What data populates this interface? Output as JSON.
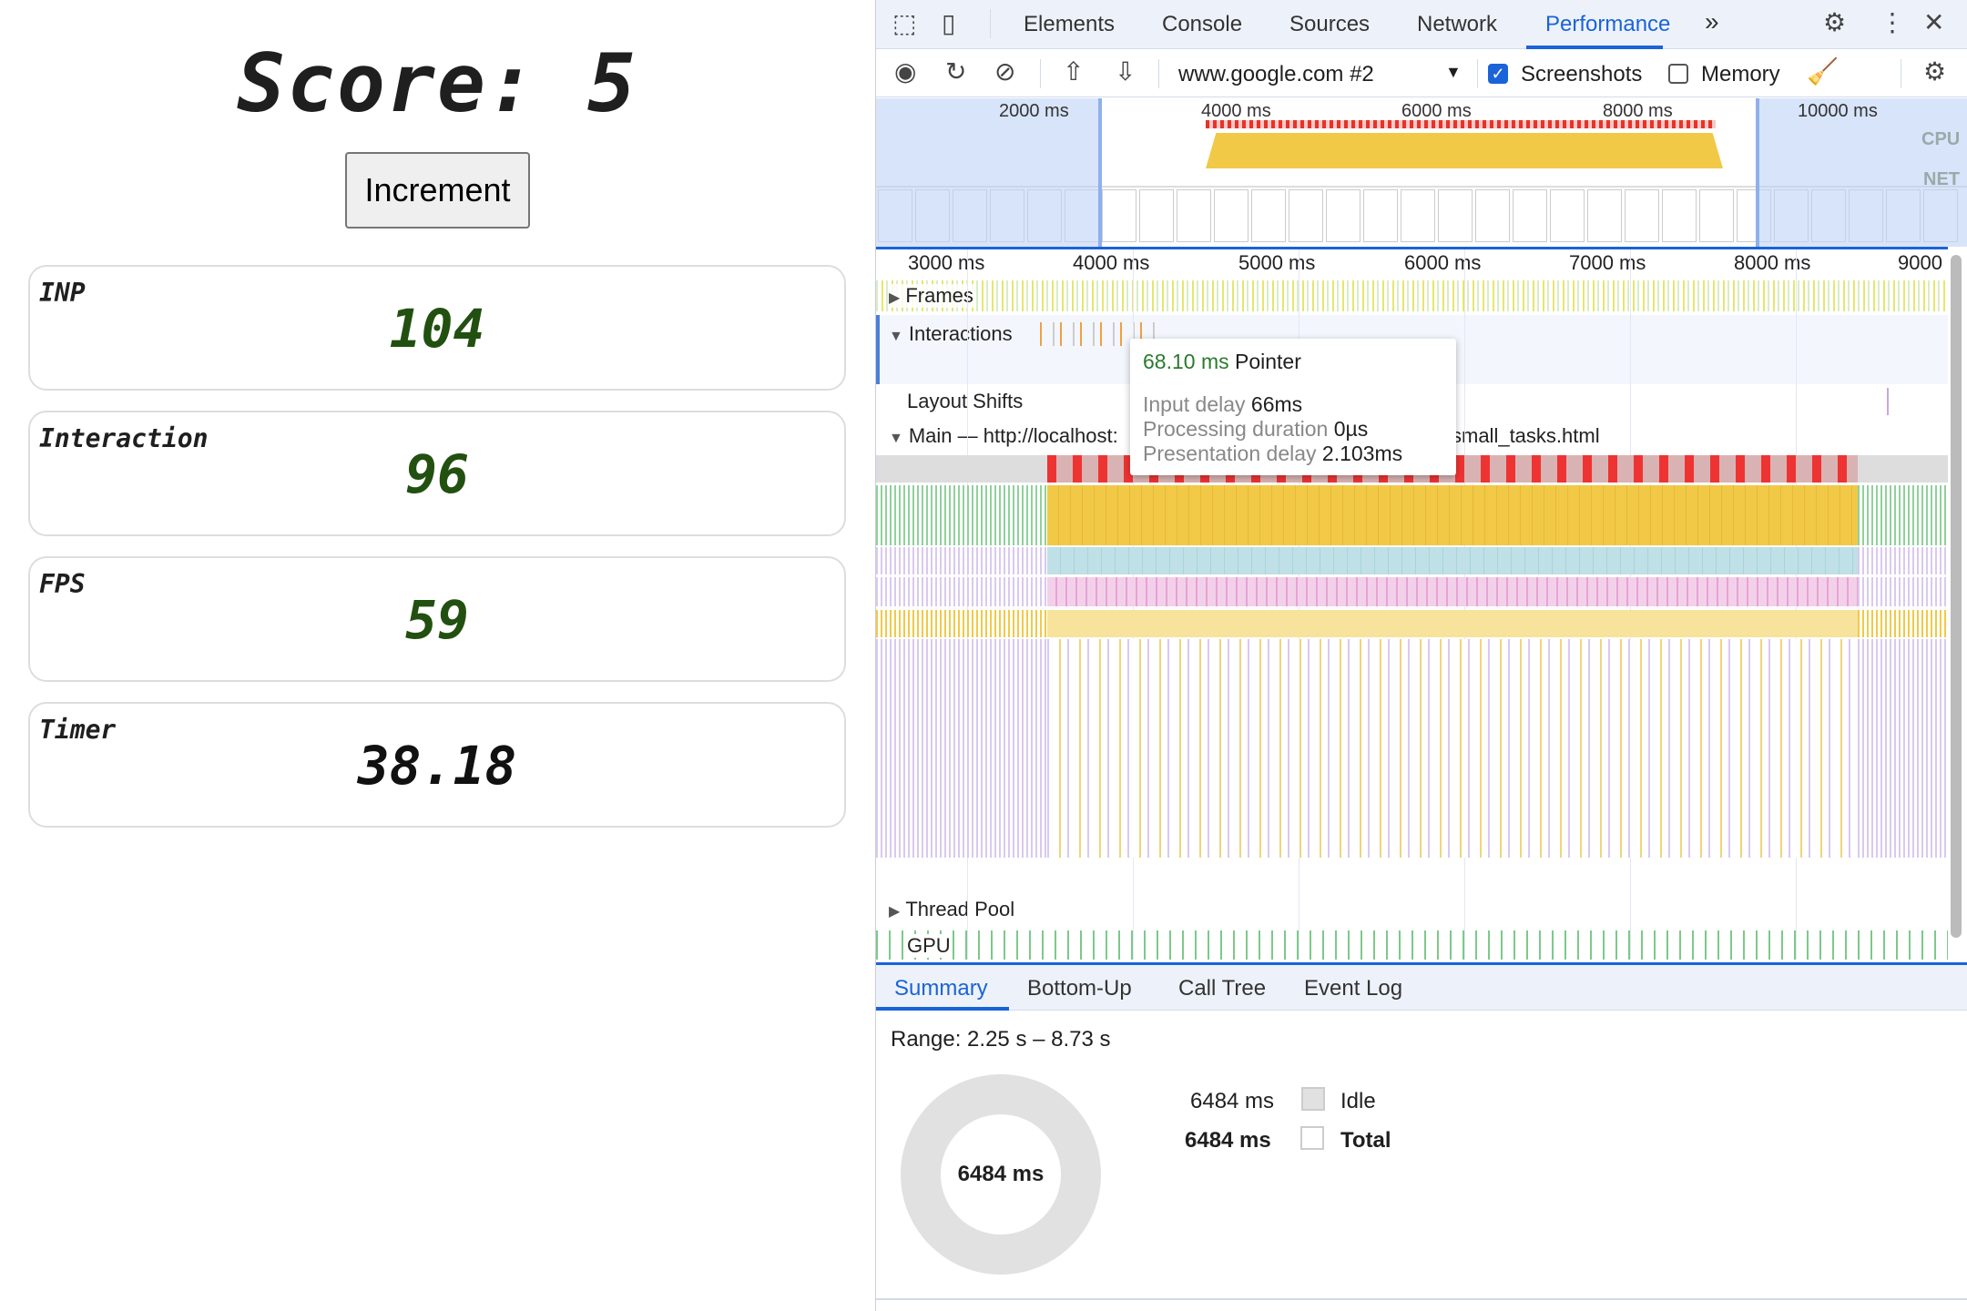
{
  "page": {
    "score": "Score: 5",
    "increment": "Increment",
    "metrics": [
      {
        "label": "INP",
        "value": "104",
        "color": "#225010"
      },
      {
        "label": "Interaction",
        "value": "96",
        "color": "#225010"
      },
      {
        "label": "FPS",
        "value": "59",
        "color": "#225010"
      },
      {
        "label": "Timer",
        "value": "38.18",
        "color": "#111111"
      }
    ]
  },
  "devtools": {
    "tabs": [
      "Elements",
      "Console",
      "Sources",
      "Network",
      "Performance"
    ],
    "active_tab": "Performance",
    "more": "»",
    "toolbar": {
      "target": "www.google.com #2",
      "screenshots": "Screenshots",
      "screenshots_checked": true,
      "memory": "Memory",
      "memory_checked": false
    },
    "overview": {
      "labels": [
        "2000 ms",
        "4000 ms",
        "6000 ms",
        "8000 ms",
        "10000 ms"
      ],
      "cpu": "CPU",
      "net": "NET"
    },
    "ruler": [
      "3000 ms",
      "4000 ms",
      "5000 ms",
      "6000 ms",
      "7000 ms",
      "8000 ms",
      "9000"
    ],
    "tracks": {
      "frames": "Frames",
      "interactions": "Interactions",
      "layout_shifts": "Layout Shifts",
      "main": "Main — http://localhost:",
      "main_suffix": "small_tasks.html",
      "thread_pool": "Thread Pool",
      "gpu": "GPU"
    },
    "tooltip": {
      "duration": "68.10 ms",
      "type": "Pointer",
      "input_delay_label": "Input delay",
      "input_delay": "66ms",
      "processing_label": "Processing duration",
      "processing": "0µs",
      "presentation_label": "Presentation delay",
      "presentation": "2.103ms"
    },
    "bottom_tabs": [
      "Summary",
      "Bottom-Up",
      "Call Tree",
      "Event Log"
    ],
    "summary": {
      "range": "Range: 2.25 s – 8.73 s",
      "donut_total": "6484 ms",
      "rows": [
        {
          "value": "6484 ms",
          "label": "Idle",
          "color": "#e1e1e1"
        },
        {
          "value": "6484 ms",
          "label": "Total",
          "color": "#ffffff"
        }
      ]
    }
  }
}
